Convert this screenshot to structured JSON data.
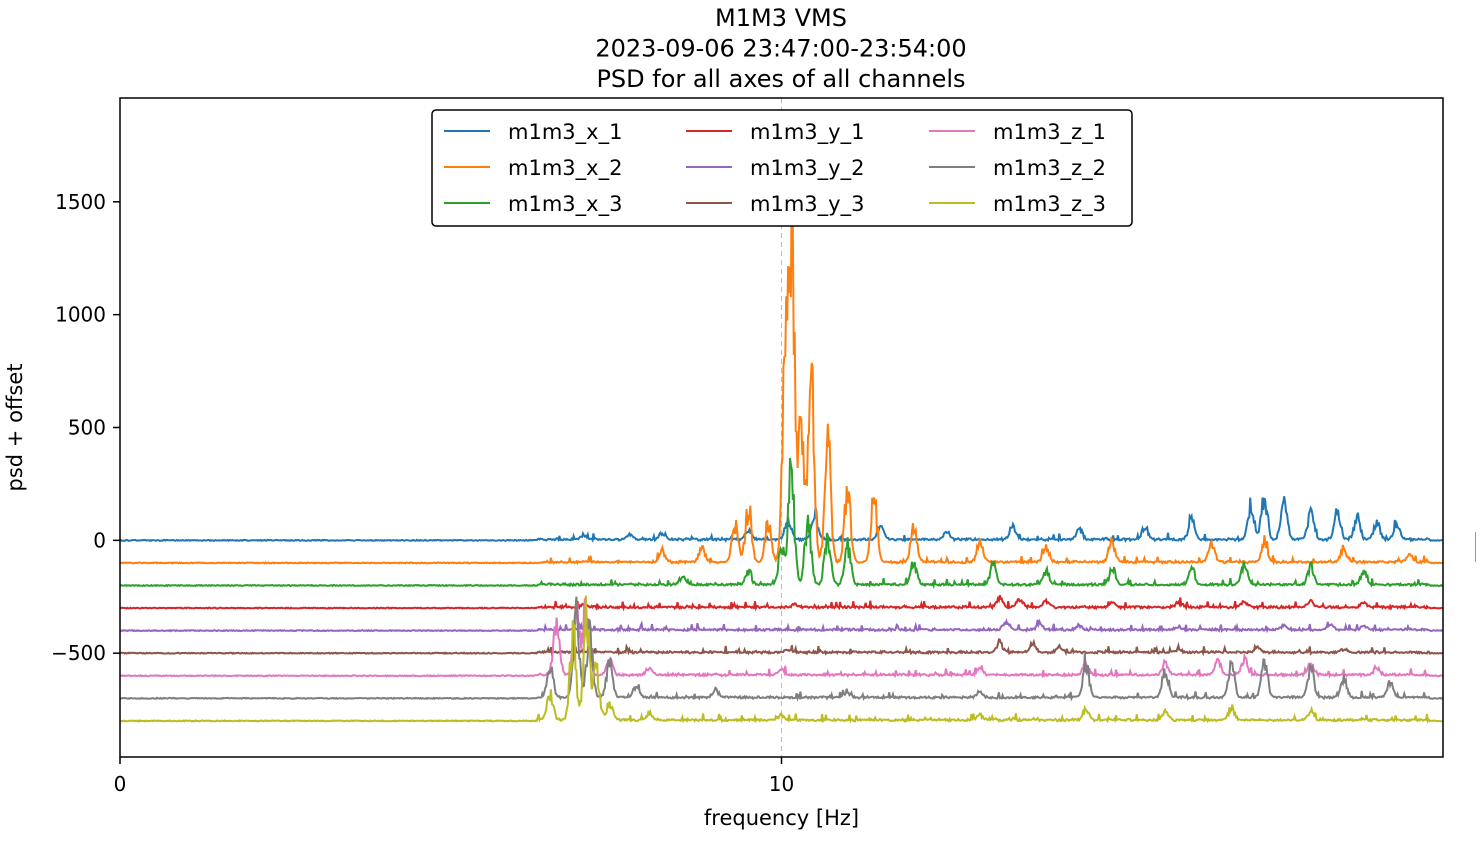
{
  "chart_data": {
    "type": "line",
    "title_lines": [
      "M1M3 VMS",
      "2023-09-06 23:47:00-23:54:00",
      "PSD for all axes of all channels"
    ],
    "xlabel": "frequency [Hz]",
    "ylabel": "psd + offset",
    "xlim": [
      0,
      20
    ],
    "ylim": [
      -960,
      1960
    ],
    "x_ticks": [
      0,
      10
    ],
    "x_tick_labels": [
      "0",
      "10"
    ],
    "y_ticks": [
      1500,
      1000,
      500,
      0,
      -500
    ],
    "y_tick_labels": [
      "1500",
      "1000",
      "500",
      "0",
      "−500"
    ],
    "reference_line_x": 10,
    "legend_position": "upper center",
    "legend_columns": 3,
    "series": [
      {
        "name": "m1m3_x_1",
        "color": "#1f77b4",
        "offset": 0,
        "peaks": [
          [
            7.0,
            25
          ],
          [
            7.7,
            30
          ],
          [
            8.2,
            40
          ],
          [
            9.5,
            60
          ],
          [
            10.1,
            110
          ],
          [
            10.5,
            140
          ],
          [
            11.5,
            90
          ],
          [
            12.5,
            40
          ],
          [
            13.5,
            80
          ],
          [
            14.5,
            60
          ],
          [
            15.5,
            70
          ],
          [
            16.2,
            110
          ],
          [
            17.1,
            200
          ],
          [
            17.3,
            240
          ],
          [
            17.6,
            220
          ],
          [
            18.0,
            160
          ],
          [
            18.4,
            150
          ],
          [
            18.7,
            130
          ],
          [
            19.0,
            100
          ],
          [
            19.3,
            80
          ]
        ]
      },
      {
        "name": "m1m3_x_2",
        "color": "#ff7f0e",
        "offset": -100,
        "peaks": [
          [
            8.2,
            60
          ],
          [
            8.8,
            80
          ],
          [
            9.3,
            220
          ],
          [
            9.5,
            300
          ],
          [
            9.8,
            230
          ],
          [
            10.05,
            900
          ],
          [
            10.15,
            1920
          ],
          [
            10.3,
            800
          ],
          [
            10.45,
            1000
          ],
          [
            10.7,
            650
          ],
          [
            11.0,
            420
          ],
          [
            11.4,
            360
          ],
          [
            12.0,
            200
          ],
          [
            13.0,
            120
          ],
          [
            14.0,
            90
          ],
          [
            15.0,
            120
          ],
          [
            16.5,
            100
          ],
          [
            17.3,
            110
          ],
          [
            18.5,
            80
          ],
          [
            19.5,
            40
          ]
        ]
      },
      {
        "name": "m1m3_x_3",
        "color": "#2ca02c",
        "offset": -200,
        "peaks": [
          [
            8.5,
            40
          ],
          [
            9.5,
            80
          ],
          [
            10.0,
            200
          ],
          [
            10.15,
            640
          ],
          [
            10.4,
            380
          ],
          [
            10.7,
            260
          ],
          [
            11.0,
            220
          ],
          [
            12.0,
            120
          ],
          [
            13.2,
            110
          ],
          [
            14.0,
            80
          ],
          [
            15.0,
            90
          ],
          [
            16.2,
            90
          ],
          [
            17.0,
            120
          ],
          [
            18.0,
            100
          ],
          [
            18.8,
            70
          ]
        ]
      },
      {
        "name": "m1m3_y_1",
        "color": "#d62728",
        "offset": -300,
        "peaks": [
          [
            7.0,
            12
          ],
          [
            10.2,
            15
          ],
          [
            13.3,
            60
          ],
          [
            13.6,
            50
          ],
          [
            14.0,
            35
          ],
          [
            15.0,
            30
          ],
          [
            16.0,
            25
          ],
          [
            17.0,
            30
          ],
          [
            18.0,
            30
          ],
          [
            18.8,
            25
          ]
        ]
      },
      {
        "name": "m1m3_y_2",
        "color": "#9467bd",
        "offset": -400,
        "peaks": [
          [
            7.0,
            10
          ],
          [
            13.4,
            45
          ],
          [
            13.9,
            40
          ],
          [
            14.5,
            25
          ],
          [
            16.0,
            15
          ],
          [
            17.6,
            25
          ],
          [
            18.3,
            30
          ],
          [
            18.8,
            20
          ]
        ]
      },
      {
        "name": "m1m3_y_3",
        "color": "#8c564b",
        "offset": -500,
        "peaks": [
          [
            7.0,
            10
          ],
          [
            10.1,
            12
          ],
          [
            13.3,
            55
          ],
          [
            13.8,
            45
          ],
          [
            14.2,
            30
          ],
          [
            16.0,
            20
          ],
          [
            17.2,
            25
          ],
          [
            18.5,
            20
          ]
        ]
      },
      {
        "name": "m1m3_z_1",
        "color": "#e377c2",
        "offset": -600,
        "peaks": [
          [
            6.6,
            280
          ],
          [
            6.9,
            330
          ],
          [
            7.05,
            380
          ],
          [
            7.4,
            90
          ],
          [
            8.0,
            40
          ],
          [
            10.0,
            30
          ],
          [
            13.0,
            35
          ],
          [
            14.6,
            60
          ],
          [
            15.8,
            70
          ],
          [
            16.6,
            80
          ],
          [
            17.0,
            90
          ],
          [
            18.0,
            60
          ],
          [
            19.0,
            40
          ]
        ]
      },
      {
        "name": "m1m3_z_2",
        "color": "#7f7f7f",
        "offset": -700,
        "peaks": [
          [
            6.5,
            180
          ],
          [
            6.9,
            480
          ],
          [
            7.1,
            360
          ],
          [
            7.4,
            200
          ],
          [
            7.8,
            60
          ],
          [
            9.0,
            40
          ],
          [
            11.0,
            30
          ],
          [
            13.0,
            30
          ],
          [
            14.6,
            200
          ],
          [
            15.8,
            160
          ],
          [
            16.8,
            190
          ],
          [
            17.3,
            220
          ],
          [
            18.0,
            170
          ],
          [
            18.5,
            110
          ],
          [
            19.2,
            80
          ]
        ]
      },
      {
        "name": "m1m3_z_3",
        "color": "#bcbd22",
        "offset": -800,
        "peaks": [
          [
            6.5,
            150
          ],
          [
            6.85,
            480
          ],
          [
            7.05,
            580
          ],
          [
            7.2,
            300
          ],
          [
            7.4,
            100
          ],
          [
            8.0,
            40
          ],
          [
            10.0,
            25
          ],
          [
            13.0,
            30
          ],
          [
            14.6,
            60
          ],
          [
            15.8,
            50
          ],
          [
            16.8,
            70
          ],
          [
            18.0,
            50
          ]
        ]
      }
    ]
  }
}
